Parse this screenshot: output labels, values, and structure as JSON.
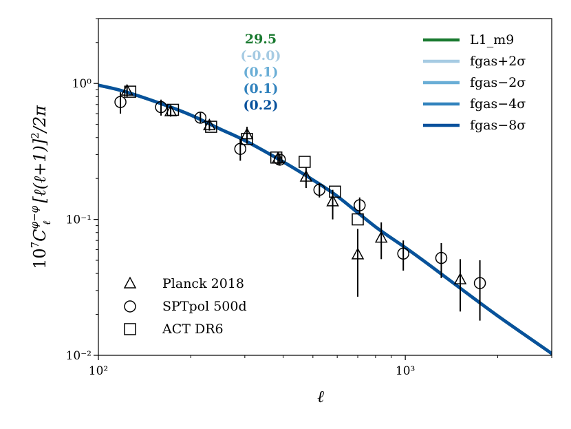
{
  "chart_data": {
    "type": "line",
    "xlabel": "ℓ",
    "ylabel": "10⁷C_ℓ^{φ−φ} [ℓ(ℓ+1)]²/2π",
    "ylabel_parts": {
      "base": "10",
      "exp": "7",
      "c": "C",
      "sup": "φ−φ",
      "sub": "ℓ",
      "rest": "[ℓ(ℓ+1)]",
      "sq": "2",
      "tail": "/2π"
    },
    "xscale": "log",
    "yscale": "log",
    "xlim": [
      100,
      3000
    ],
    "ylim": [
      0.01,
      3.0
    ],
    "x_ticks": [
      {
        "value": 100,
        "label": "10²"
      },
      {
        "value": 1000,
        "label": "10³"
      }
    ],
    "y_ticks": [
      {
        "value": 0.01,
        "label": "10⁻²"
      },
      {
        "value": 0.1,
        "label": "10⁻¹"
      },
      {
        "value": 1,
        "label": "10⁰"
      }
    ],
    "annotations": [
      {
        "text": "29.5",
        "color": "#1a7a30"
      },
      {
        "text": "(-0.0)",
        "color": "#a6cbe3"
      },
      {
        "text": "(0.1)",
        "color": "#6aaed6"
      },
      {
        "text": "(0.1)",
        "color": "#3182bd"
      },
      {
        "text": "(0.2)",
        "color": "#08519c"
      }
    ],
    "series": [
      {
        "name": "L1_m9",
        "color": "#1a7a30"
      },
      {
        "name": "fgas+2σ",
        "color": "#a6cbe3"
      },
      {
        "name": "fgas−2σ",
        "color": "#6aaed6"
      },
      {
        "name": "fgas−4σ",
        "color": "#3182bd"
      },
      {
        "name": "fgas−8σ",
        "color": "#08519c"
      }
    ],
    "model_curve": [
      [
        100,
        0.97
      ],
      [
        120,
        0.88
      ],
      [
        160,
        0.71
      ],
      [
        200,
        0.585
      ],
      [
        250,
        0.46
      ],
      [
        300,
        0.38
      ],
      [
        400,
        0.265
      ],
      [
        500,
        0.195
      ],
      [
        600,
        0.148
      ],
      [
        800,
        0.088
      ],
      [
        1000,
        0.062
      ],
      [
        1200,
        0.046
      ],
      [
        1500,
        0.0315
      ],
      [
        2000,
        0.0195
      ],
      [
        3000,
        0.0103
      ]
    ],
    "data_series": [
      {
        "name": "Planck 2018",
        "marker": "triangle",
        "points": [
          {
            "x": 124,
            "y": 0.88,
            "lo": 0.8,
            "hi": 0.95
          },
          {
            "x": 172,
            "y": 0.62,
            "lo": 0.57,
            "hi": 0.67
          },
          {
            "x": 230,
            "y": 0.49,
            "lo": 0.45,
            "hi": 0.53
          },
          {
            "x": 305,
            "y": 0.42,
            "lo": 0.36,
            "hi": 0.48
          },
          {
            "x": 385,
            "y": 0.28,
            "lo": 0.25,
            "hi": 0.31
          },
          {
            "x": 475,
            "y": 0.205,
            "lo": 0.17,
            "hi": 0.24
          },
          {
            "x": 580,
            "y": 0.135,
            "lo": 0.1,
            "hi": 0.165
          },
          {
            "x": 700,
            "y": 0.055,
            "lo": 0.027,
            "hi": 0.085
          },
          {
            "x": 835,
            "y": 0.073,
            "lo": 0.051,
            "hi": 0.095
          },
          {
            "x": 1510,
            "y": 0.036,
            "lo": 0.021,
            "hi": 0.051
          }
        ]
      },
      {
        "name": "SPTpol 500d",
        "marker": "circle",
        "points": [
          {
            "x": 118,
            "y": 0.73,
            "lo": 0.6,
            "hi": 0.86
          },
          {
            "x": 160,
            "y": 0.67,
            "lo": 0.58,
            "hi": 0.76
          },
          {
            "x": 215,
            "y": 0.56,
            "lo": 0.51,
            "hi": 0.61
          },
          {
            "x": 290,
            "y": 0.33,
            "lo": 0.27,
            "hi": 0.39
          },
          {
            "x": 390,
            "y": 0.275,
            "lo": 0.25,
            "hi": 0.3
          },
          {
            "x": 525,
            "y": 0.165,
            "lo": 0.145,
            "hi": 0.185
          },
          {
            "x": 710,
            "y": 0.127,
            "lo": 0.11,
            "hi": 0.145
          },
          {
            "x": 985,
            "y": 0.056,
            "lo": 0.042,
            "hi": 0.07
          },
          {
            "x": 1310,
            "y": 0.052,
            "lo": 0.037,
            "hi": 0.067
          },
          {
            "x": 1750,
            "y": 0.034,
            "lo": 0.018,
            "hi": 0.05
          }
        ]
      },
      {
        "name": "ACT DR6",
        "marker": "square",
        "points": [
          {
            "x": 127,
            "y": 0.87
          },
          {
            "x": 175,
            "y": 0.64
          },
          {
            "x": 233,
            "y": 0.48
          },
          {
            "x": 305,
            "y": 0.39
          },
          {
            "x": 380,
            "y": 0.285
          },
          {
            "x": 470,
            "y": 0.265
          },
          {
            "x": 590,
            "y": 0.16
          },
          {
            "x": 700,
            "y": 0.1
          }
        ]
      }
    ],
    "legend_placement": "top-right",
    "markers_legend_placement": "bottom-left",
    "grid": false
  }
}
